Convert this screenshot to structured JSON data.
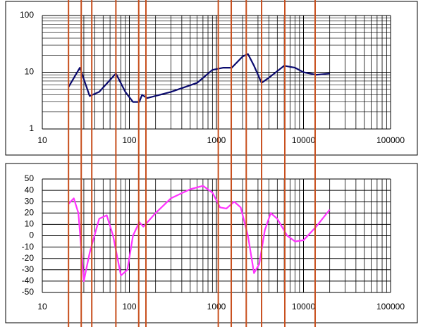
{
  "chart_data": [
    {
      "type": "line",
      "xscale": "log",
      "yscale": "log",
      "grid": true,
      "xlim": [
        10,
        100000
      ],
      "xticks": [
        10,
        100,
        1000,
        10000,
        100000
      ],
      "ylim": [
        1,
        100
      ],
      "yticks": [
        1,
        10,
        100
      ],
      "x": [
        20,
        27,
        35,
        45,
        70,
        90,
        110,
        130,
        140,
        160,
        300,
        600,
        900,
        1200,
        1500,
        2000,
        2300,
        2700,
        3300,
        4000,
        6000,
        8000,
        10000,
        14000,
        20000
      ],
      "series": [
        {
          "color": "#0a0a6e",
          "values": [
            5.5,
            12,
            3.8,
            4.5,
            9.5,
            4.5,
            3,
            3,
            4,
            3.5,
            4.5,
            6.5,
            11,
            12,
            12,
            19,
            21,
            13,
            6.5,
            8,
            13,
            12,
            10,
            9,
            9.5
          ]
        }
      ]
    },
    {
      "type": "line",
      "xscale": "log",
      "grid": true,
      "xlim": [
        10,
        100000
      ],
      "xticks": [
        10,
        100,
        1000,
        10000,
        100000
      ],
      "ylim": [
        -50,
        50
      ],
      "yticks": [
        -50,
        -40,
        -30,
        -20,
        -10,
        0,
        10,
        20,
        30,
        40,
        50
      ],
      "x": [
        20,
        23,
        26,
        30,
        35,
        45,
        55,
        65,
        80,
        95,
        110,
        130,
        145,
        200,
        300,
        500,
        700,
        900,
        1100,
        1300,
        1600,
        1900,
        2300,
        2700,
        3100,
        3600,
        4200,
        5000,
        6500,
        8000,
        10000,
        14000,
        20000
      ],
      "series": [
        {
          "color": "#ff33ff",
          "values": [
            28,
            33,
            20,
            -40,
            -15,
            15,
            18,
            0,
            -35,
            -30,
            0,
            12,
            8,
            20,
            33,
            41,
            44,
            38,
            25,
            24,
            30,
            25,
            0,
            -33,
            -25,
            5,
            20,
            15,
            0,
            -5,
            -4,
            8,
            23
          ]
        }
      ]
    }
  ],
  "vlines": {
    "color": "#c8501e",
    "x": [
      20,
      28,
      37,
      70,
      128,
      155,
      1050,
      1480,
      2200,
      3300,
      6100,
      13600
    ]
  }
}
